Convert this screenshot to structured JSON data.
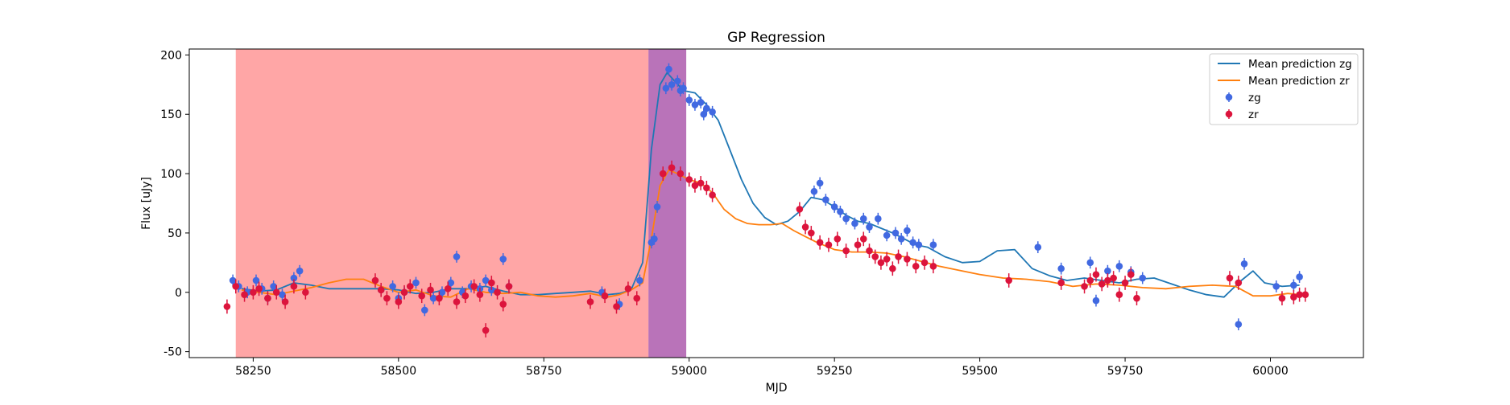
{
  "colors": {
    "zg_line": "#1f77b4",
    "zr_line": "#ff7f0e",
    "zg_points": "#4169e1",
    "zr_points": "#dc143c",
    "span_red": "#ff0000",
    "span_purple": "#800080"
  },
  "chart_data": {
    "type": "scatter",
    "title": "GP Regression",
    "xlabel": "MJD",
    "ylabel": "Flux [uJy]",
    "xlim": [
      58140,
      60160
    ],
    "ylim": [
      -55,
      205
    ],
    "xticks": [
      58250,
      58500,
      58750,
      59000,
      59250,
      59500,
      59750,
      60000
    ],
    "yticks": [
      -50,
      0,
      50,
      100,
      150,
      200
    ],
    "grid": false,
    "legend_position": "top-right",
    "spans": [
      {
        "x0": 58220,
        "x1": 58930,
        "color": "red",
        "alpha": 0.35
      },
      {
        "x0": 58930,
        "x1": 58995,
        "color": "purple",
        "alpha": 0.55
      }
    ],
    "series": [
      {
        "name": "Mean prediction zg",
        "kind": "line",
        "color": "#1f77b4",
        "x": [
          58230,
          58260,
          58290,
          58320,
          58350,
          58380,
          58410,
          58440,
          58470,
          58500,
          58530,
          58560,
          58590,
          58620,
          58650,
          58680,
          58710,
          58740,
          58770,
          58800,
          58830,
          58860,
          58880,
          58900,
          58920,
          58935,
          58950,
          58962,
          58975,
          58990,
          59010,
          59030,
          59050,
          59070,
          59090,
          59110,
          59130,
          59150,
          59170,
          59190,
          59210,
          59230,
          59250,
          59270,
          59290,
          59310,
          59330,
          59350,
          59370,
          59390,
          59410,
          59440,
          59470,
          59500,
          59530,
          59560,
          59590,
          59620,
          59650,
          59680,
          59710,
          59740,
          59770,
          59800,
          59830,
          59860,
          59890,
          59920,
          59950,
          59970,
          59990,
          60020,
          60050
        ],
        "y": [
          3,
          1,
          2,
          8,
          6,
          3,
          3,
          3,
          3,
          2,
          -1,
          0,
          3,
          3,
          5,
          1,
          -2,
          -2,
          -1,
          0,
          1,
          -2,
          -1,
          2,
          25,
          120,
          175,
          185,
          178,
          170,
          168,
          158,
          145,
          120,
          95,
          75,
          63,
          57,
          60,
          68,
          80,
          78,
          72,
          65,
          60,
          58,
          54,
          50,
          45,
          40,
          38,
          30,
          25,
          26,
          35,
          36,
          20,
          14,
          10,
          12,
          10,
          8,
          11,
          12,
          7,
          2,
          -2,
          -4,
          10,
          18,
          8,
          5,
          6
        ]
      },
      {
        "name": "Mean prediction zr",
        "kind": "line",
        "color": "#ff7f0e",
        "x": [
          58230,
          58260,
          58290,
          58320,
          58350,
          58380,
          58410,
          58440,
          58470,
          58500,
          58530,
          58560,
          58590,
          58620,
          58650,
          58680,
          58710,
          58740,
          58770,
          58800,
          58830,
          58860,
          58880,
          58900,
          58920,
          58935,
          58950,
          58965,
          58980,
          59000,
          59020,
          59040,
          59060,
          59080,
          59100,
          59120,
          59140,
          59160,
          59180,
          59200,
          59220,
          59250,
          59280,
          59310,
          59340,
          59370,
          59400,
          59430,
          59460,
          59500,
          59540,
          59580,
          59620,
          59660,
          59700,
          59740,
          59780,
          59820,
          59860,
          59900,
          59940,
          59970,
          60000,
          60030,
          60050
        ],
        "y": [
          2,
          0,
          -2,
          1,
          4,
          8,
          11,
          11,
          5,
          0,
          2,
          -3,
          -4,
          3,
          0,
          -1,
          0,
          -3,
          -4,
          -3,
          -1,
          -4,
          -2,
          2,
          8,
          45,
          90,
          103,
          100,
          95,
          92,
          84,
          70,
          62,
          58,
          57,
          57,
          58,
          52,
          47,
          42,
          36,
          34,
          34,
          33,
          30,
          26,
          22,
          19,
          15,
          12,
          11,
          9,
          5,
          7,
          6,
          4,
          3,
          5,
          6,
          5,
          -3,
          -3,
          -1,
          -2
        ]
      },
      {
        "name": "zg",
        "kind": "scatter",
        "color": "#4169e1",
        "err": 5,
        "x": [
          58215,
          58225,
          58240,
          58255,
          58265,
          58275,
          58285,
          58300,
          58320,
          58330,
          58470,
          58490,
          58500,
          58510,
          58530,
          58545,
          58560,
          58575,
          58590,
          58600,
          58610,
          58625,
          58640,
          58650,
          58660,
          58680,
          58690,
          58850,
          58880,
          58915,
          58935,
          58940,
          58945,
          58960,
          58965,
          58970,
          58980,
          58985,
          58990,
          59000,
          59010,
          59020,
          59025,
          59030,
          59040,
          59215,
          59225,
          59235,
          59250,
          59260,
          59270,
          59285,
          59300,
          59310,
          59325,
          59340,
          59355,
          59365,
          59375,
          59385,
          59395,
          59420,
          59600,
          59640,
          59690,
          59700,
          59720,
          59740,
          59760,
          59780,
          59945,
          59955,
          60010,
          60040,
          60050
        ],
        "y": [
          10,
          5,
          0,
          10,
          3,
          -5,
          5,
          -2,
          12,
          18,
          2,
          5,
          -5,
          0,
          8,
          -15,
          -5,
          0,
          8,
          30,
          0,
          5,
          3,
          10,
          2,
          28,
          5,
          0,
          -10,
          10,
          42,
          45,
          72,
          172,
          188,
          175,
          178,
          170,
          172,
          162,
          158,
          160,
          150,
          155,
          152,
          85,
          92,
          78,
          72,
          68,
          62,
          58,
          62,
          55,
          62,
          48,
          50,
          45,
          52,
          42,
          40,
          40,
          38,
          20,
          25,
          -7,
          18,
          22,
          17,
          12,
          -27,
          24,
          5,
          6,
          13
        ]
      },
      {
        "name": "zr",
        "kind": "scatter",
        "color": "#dc143c",
        "err": 6,
        "x": [
          58205,
          58220,
          58235,
          58250,
          58260,
          58275,
          58290,
          58305,
          58320,
          58340,
          58460,
          58470,
          58480,
          58500,
          58510,
          58520,
          58540,
          58555,
          58570,
          58585,
          58600,
          58615,
          58630,
          58640,
          58650,
          58660,
          58670,
          58680,
          58690,
          58830,
          58855,
          58875,
          58895,
          58910,
          58955,
          58970,
          58985,
          59000,
          59010,
          59020,
          59030,
          59040,
          59190,
          59200,
          59210,
          59225,
          59240,
          59255,
          59270,
          59290,
          59300,
          59310,
          59320,
          59330,
          59340,
          59350,
          59360,
          59375,
          59390,
          59405,
          59420,
          59550,
          59640,
          59680,
          59690,
          59700,
          59710,
          59720,
          59730,
          59740,
          59750,
          59760,
          59770,
          59930,
          59945,
          60020,
          60040,
          60050,
          60060
        ],
        "y": [
          -12,
          5,
          -2,
          0,
          3,
          -5,
          0,
          -8,
          5,
          0,
          10,
          2,
          -5,
          -8,
          0,
          5,
          -3,
          2,
          -5,
          3,
          -8,
          -3,
          5,
          -2,
          -32,
          8,
          0,
          -10,
          5,
          -8,
          -3,
          -12,
          3,
          -5,
          100,
          105,
          100,
          95,
          90,
          92,
          88,
          82,
          70,
          55,
          50,
          42,
          40,
          45,
          35,
          40,
          45,
          35,
          30,
          25,
          28,
          20,
          30,
          28,
          22,
          25,
          22,
          10,
          8,
          5,
          10,
          15,
          7,
          10,
          12,
          -2,
          8,
          15,
          -5,
          12,
          8,
          -5,
          -4,
          -2,
          -2
        ]
      }
    ]
  }
}
